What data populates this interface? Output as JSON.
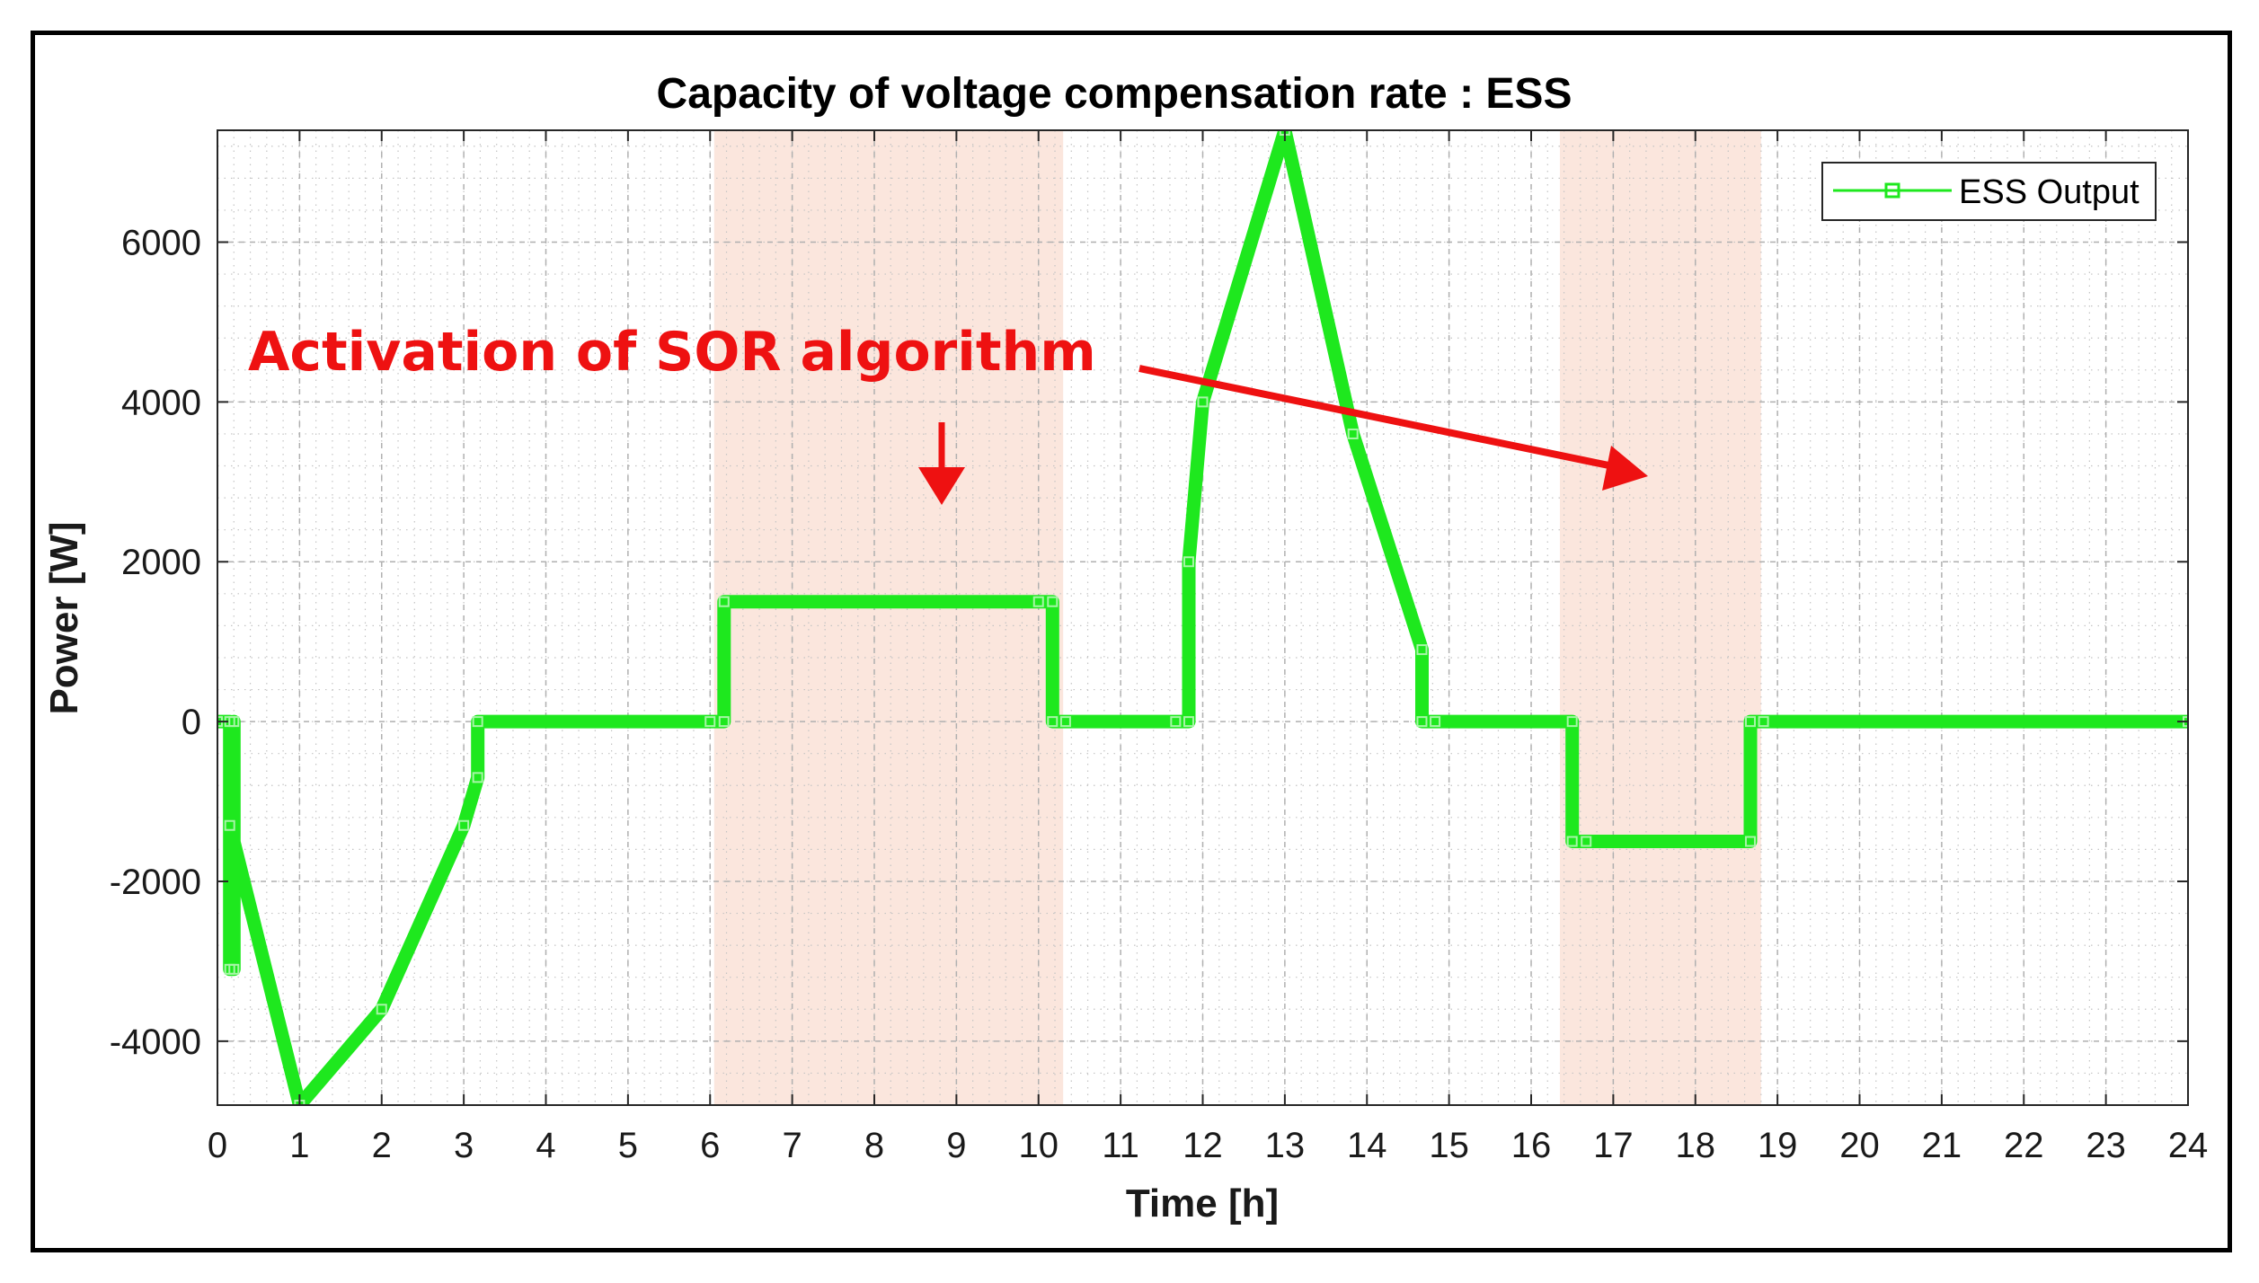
{
  "chart_data": {
    "type": "line",
    "title": "Capacity of voltage compensation rate : ESS",
    "xlabel": "Time [h]",
    "ylabel": "Power [W]",
    "xlim": [
      0,
      24
    ],
    "ylim": [
      -4800,
      7400
    ],
    "xticks": [
      0,
      1,
      2,
      3,
      4,
      5,
      6,
      7,
      8,
      9,
      10,
      11,
      12,
      13,
      14,
      15,
      16,
      17,
      18,
      19,
      20,
      21,
      22,
      23,
      24
    ],
    "yticks": [
      -4000,
      -2000,
      0,
      2000,
      4000,
      6000
    ],
    "grid": true,
    "minor_grid": true,
    "legend": {
      "position": "top-right",
      "entries": [
        "ESS Output"
      ]
    },
    "colors": {
      "series": "#1ee81e",
      "shade": "#fbe6dd",
      "annotation": "#ee1111"
    },
    "series": [
      {
        "name": "ESS Output",
        "x": [
          0,
          0.15,
          0.15,
          0.2,
          0.2,
          0.15,
          1.0,
          2.0,
          3.0,
          3.17,
          3.17,
          6.0,
          6.17,
          6.17,
          10.0,
          10.17,
          10.17,
          10.33,
          11.67,
          11.83,
          11.83,
          12.0,
          13.0,
          13.83,
          14.67,
          14.67,
          14.83,
          16.5,
          16.5,
          16.67,
          18.67,
          18.67,
          18.83,
          24.0
        ],
        "y": [
          0,
          0,
          -3100,
          -3100,
          0,
          -1300,
          -4800,
          -3600,
          -1300,
          -700,
          0,
          0,
          0,
          1500,
          1500,
          1500,
          0,
          0,
          0,
          0,
          2000,
          4000,
          7400,
          3600,
          900,
          0,
          0,
          0,
          -1500,
          -1500,
          -1500,
          0,
          0,
          0
        ]
      }
    ],
    "shaded_regions": [
      [
        6.05,
        10.3
      ],
      [
        16.35,
        18.8
      ]
    ],
    "annotations": [
      {
        "text": "Activation of SOR algorithm"
      }
    ]
  }
}
